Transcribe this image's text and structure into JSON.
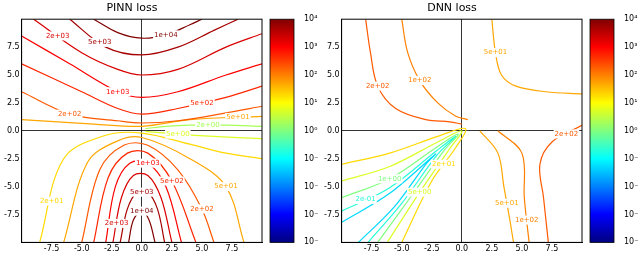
{
  "chart_data": [
    {
      "type": "contour",
      "title": "PINN loss",
      "xlim": [
        -10,
        10
      ],
      "ylim": [
        -10,
        10
      ],
      "xticks": [
        -7.5,
        {
          "value": -5,
          "label": "-5.0"
        },
        -2.5,
        {
          "value": 0,
          "label": "0.0"
        },
        2.5,
        {
          "value": 5,
          "label": "5.0"
        },
        7.5
      ],
      "yticks": [
        -7.5,
        {
          "value": -5,
          "label": "-5.0"
        },
        -2.5,
        {
          "value": 0,
          "label": "0.0"
        },
        2.5,
        {
          "value": 5,
          "label": "5.0"
        },
        7.5
      ],
      "colorbar": {
        "log": true,
        "range": [
          0.0001,
          10000
        ],
        "ticks": [
          {
            "value": 0.0001,
            "label": "10⁻⁴"
          },
          {
            "value": 0.001,
            "label": "10⁻³"
          },
          {
            "value": 0.01,
            "label": "10⁻²"
          },
          {
            "value": 0.1,
            "label": "10⁻¹"
          },
          {
            "value": 1,
            "label": "10⁰"
          },
          {
            "value": 10,
            "label": "10¹"
          },
          {
            "value": 100,
            "label": "10²"
          },
          {
            "value": 1000,
            "label": "10³"
          },
          {
            "value": 10000,
            "label": "10⁴"
          }
        ]
      },
      "contours": [
        {
          "level": 10000,
          "label": "1e+04",
          "label_at": [
            2,
            8.6
          ],
          "points": [
            [
              -4,
              10
            ],
            [
              -2,
              8.8
            ],
            [
              0,
              8.3
            ],
            [
              2,
              8.6
            ],
            [
              4,
              9.5
            ],
            [
              5,
              10
            ]
          ]
        },
        {
          "level": 5000,
          "label": "5e+03",
          "label_at": [
            -3.5,
            7.92
          ],
          "points": [
            [
              -6,
              10
            ],
            [
              -3,
              7.5
            ],
            [
              0,
              6.8
            ],
            [
              3,
              7.5
            ],
            [
              6,
              9
            ],
            [
              8,
              10
            ]
          ]
        },
        {
          "level": 2000,
          "label": "2e+03",
          "label_at": [
            -7,
            8.5
          ],
          "points": [
            [
              -9,
              10
            ],
            [
              -5,
              7
            ],
            [
              -2,
              5.5
            ],
            [
              0,
              5
            ],
            [
              3,
              5.5
            ],
            [
              7,
              7.5
            ],
            [
              10,
              8.7
            ]
          ]
        },
        {
          "level": 1000,
          "label": "1e+03",
          "label_at": [
            -2,
            3.5
          ],
          "points": [
            [
              -10,
              8.5
            ],
            [
              -6,
              6
            ],
            [
              -2,
              3.5
            ],
            [
              0,
              3
            ],
            [
              3,
              3.5
            ],
            [
              7,
              5
            ],
            [
              10,
              6
            ]
          ]
        },
        {
          "level": 500,
          "label": "5e+02",
          "label_at": [
            5,
            2.5
          ],
          "points": [
            [
              -10,
              6
            ],
            [
              -5,
              3.5
            ],
            [
              -2,
              2
            ],
            [
              0,
              1.5
            ],
            [
              3,
              2
            ],
            [
              7,
              3
            ],
            [
              10,
              4
            ]
          ]
        },
        {
          "level": 200,
          "label": "2e+02",
          "label_at": [
            -6,
            1.5
          ],
          "points": [
            [
              -10,
              3.5
            ],
            [
              -6,
              1.5
            ],
            [
              -2,
              0.9
            ],
            [
              0,
              0.7
            ],
            [
              3,
              0.9
            ],
            [
              7,
              1.6
            ],
            [
              10,
              2.2
            ]
          ]
        },
        {
          "level": 50,
          "label": "5e+01",
          "label_at": [
            8,
            1.2
          ],
          "points": [
            [
              -10,
              1
            ],
            [
              -4,
              0.6
            ],
            [
              0,
              0.4
            ],
            [
              4,
              1
            ],
            [
              10,
              1.3
            ]
          ]
        },
        {
          "level": 2,
          "label": "2e+00",
          "label_at": [
            5.5,
            0.5
          ],
          "points": [
            [
              0.3,
              0.2
            ],
            [
              2,
              0.4
            ],
            [
              4,
              0.5
            ],
            [
              7,
              0.5
            ],
            [
              10,
              0.4
            ]
          ]
        },
        {
          "level": 5,
          "label": "5e+00",
          "label_at": [
            3,
            -0.3
          ],
          "points": [
            [
              0.3,
              -0.05
            ],
            [
              3,
              -0.3
            ],
            [
              6,
              -0.5
            ],
            [
              10,
              -0.7
            ]
          ]
        },
        {
          "level": 20,
          "label": "2e+01",
          "label_at": [
            -7.5,
            -6.3
          ],
          "points": [
            [
              -8.5,
              -10
            ],
            [
              -6.5,
              -2.5
            ],
            [
              -3,
              -0.4
            ],
            [
              0,
              -0.2
            ],
            [
              4,
              -1.2
            ],
            [
              7,
              -2
            ],
            [
              10,
              -2.5
            ]
          ]
        },
        {
          "level": 50,
          "label": "5e+01",
          "label_at": [
            7,
            -5
          ],
          "points": [
            [
              -6.5,
              -10
            ],
            [
              -4.5,
              -2.8
            ],
            [
              -2,
              -0.9
            ],
            [
              0,
              -0.6
            ],
            [
              4,
              -2.5
            ],
            [
              7,
              -5
            ],
            [
              8.5,
              -10
            ]
          ]
        },
        {
          "level": 200,
          "label": "2e+02",
          "label_at": [
            5,
            -7
          ],
          "points": [
            [
              -5,
              -10
            ],
            [
              -3.5,
              -3.5
            ],
            [
              -1.5,
              -1.3
            ],
            [
              0.5,
              -1.3
            ],
            [
              3,
              -3.5
            ],
            [
              5,
              -7
            ],
            [
              6,
              -10
            ]
          ]
        },
        {
          "level": 500,
          "label": "5e+02",
          "label_at": [
            2.5,
            -4.5
          ],
          "points": [
            [
              -4,
              -10
            ],
            [
              -2.8,
              -4.2
            ],
            [
              -1.2,
              -2
            ],
            [
              0.5,
              -2
            ],
            [
              2.5,
              -4.5
            ],
            [
              4.5,
              -10
            ]
          ]
        },
        {
          "level": 1000,
          "label": "1e+03",
          "label_at": [
            0.5,
            -2.9
          ],
          "points": [
            [
              -3,
              -10
            ],
            [
              -2.2,
              -5
            ],
            [
              -1,
              -2.9
            ],
            [
              0.5,
              -2.9
            ],
            [
              2,
              -5
            ],
            [
              3.3,
              -10
            ]
          ]
        },
        {
          "level": 2000,
          "label": "2e+03",
          "label_at": [
            -2.1,
            -8.3
          ],
          "points": [
            [
              -2.4,
              -10
            ],
            [
              -1.7,
              -6
            ],
            [
              -0.7,
              -4
            ],
            [
              0.5,
              -4
            ],
            [
              1.6,
              -6
            ],
            [
              2.5,
              -10
            ]
          ]
        },
        {
          "level": 5000,
          "label": "5e+03",
          "label_at": [
            0,
            -5.5
          ],
          "points": [
            [
              -1.8,
              -10
            ],
            [
              -1.2,
              -7
            ],
            [
              -0.4,
              -5.5
            ],
            [
              0.5,
              -5.5
            ],
            [
              1.3,
              -7
            ],
            [
              1.9,
              -10
            ]
          ]
        },
        {
          "level": 10000,
          "label": "1e+04",
          "label_at": [
            0,
            -7.2
          ],
          "points": [
            [
              -1.1,
              -10
            ],
            [
              -0.7,
              -8
            ],
            [
              0,
              -7.2
            ],
            [
              0.6,
              -8
            ],
            [
              1.1,
              -10
            ]
          ]
        }
      ]
    },
    {
      "type": "contour",
      "title": "DNN loss",
      "xlim": [
        -10,
        10
      ],
      "ylim": [
        -10,
        10
      ],
      "xticks": [
        -7.5,
        {
          "value": -5,
          "label": "-5.0"
        },
        -2.5,
        {
          "value": 0,
          "label": "0.0"
        },
        2.5,
        {
          "value": 5,
          "label": "5.0"
        },
        7.5
      ],
      "yticks": [
        -7.5,
        {
          "value": -5,
          "label": "-5.0"
        },
        -2.5,
        {
          "value": 0,
          "label": "0.0"
        },
        2.5,
        {
          "value": 5,
          "label": "5.0"
        },
        7.5
      ],
      "colorbar": {
        "log": true,
        "range": [
          0.0001,
          10000
        ],
        "ticks": [
          {
            "value": 0.0001,
            "label": "10⁻⁴"
          },
          {
            "value": 0.001,
            "label": "10⁻³"
          },
          {
            "value": 0.01,
            "label": "10⁻²"
          },
          {
            "value": 0.1,
            "label": "10⁻¹"
          },
          {
            "value": 1,
            "label": "10⁰"
          },
          {
            "value": 10,
            "label": "10¹"
          },
          {
            "value": 100,
            "label": "10²"
          },
          {
            "value": 1000,
            "label": "10³"
          },
          {
            "value": 10000,
            "label": "10⁴"
          }
        ]
      },
      "contours": [
        {
          "level": 200,
          "label": "2e+02",
          "label_at": [
            -7,
            4
          ],
          "points": [
            [
              -8,
              10
            ],
            [
              -7.6,
              7
            ],
            [
              -7,
              4
            ],
            [
              -5.5,
              2
            ],
            [
              -3,
              1
            ],
            [
              -1,
              0.8
            ],
            [
              0,
              0.6
            ]
          ]
        },
        {
          "level": 100,
          "label": "1e+02",
          "label_at": [
            -3.5,
            4.5
          ],
          "points": [
            [
              -5,
              10
            ],
            [
              -4.5,
              7
            ],
            [
              -3.5,
              4.5
            ],
            [
              -2,
              2.5
            ],
            [
              -0.5,
              1.3
            ],
            [
              0.5,
              1
            ]
          ]
        },
        {
          "level": 50,
          "label": "5e+01",
          "label_at": [
            2.8,
            7
          ],
          "points": [
            [
              2.5,
              10
            ],
            [
              2.8,
              7
            ],
            [
              3.3,
              5
            ],
            [
              4.5,
              4
            ],
            [
              7,
              3.5
            ],
            [
              10,
              3.3
            ]
          ]
        },
        {
          "level": 50,
          "label": "5e+01",
          "label_at": [
            3.75,
            -6.5
          ],
          "points": [
            [
              1.5,
              0
            ],
            [
              3,
              -2
            ],
            [
              3.5,
              -5
            ],
            [
              4,
              -8
            ],
            [
              4.3,
              -10
            ]
          ]
        },
        {
          "level": 100,
          "label": "1e+02",
          "label_at": [
            5.4,
            -8
          ],
          "points": [
            [
              3,
              0
            ],
            [
              5,
              -2
            ],
            [
              5.2,
              -6
            ],
            [
              5.6,
              -10
            ]
          ]
        },
        {
          "level": 200,
          "label": "2e+02",
          "label_at": [
            8.7,
            -0.28
          ],
          "points": [
            [
              10,
              0.5
            ],
            [
              7.5,
              -1
            ],
            [
              6.5,
              -3
            ],
            [
              6.8,
              -6
            ],
            [
              7.2,
              -10
            ]
          ]
        },
        {
          "level": 20,
          "label": "2e+01",
          "label_at": [
            -1.5,
            -3
          ],
          "points": [
            [
              -10,
              -3
            ],
            [
              -6,
              -2
            ],
            [
              -2,
              -0.5
            ],
            [
              0.3,
              0.2
            ],
            [
              -0.5,
              -1.5
            ],
            [
              -2.5,
              -4.5
            ],
            [
              -5,
              -10
            ]
          ]
        },
        {
          "level": 5,
          "label": "5e+00",
          "label_at": [
            -3.5,
            -5.5
          ],
          "points": [
            [
              -10,
              -4.5
            ],
            [
              -6,
              -3.2
            ],
            [
              -2,
              -1
            ],
            [
              0,
              0
            ],
            [
              -1,
              -1.6
            ],
            [
              -3.5,
              -5.5
            ],
            [
              -6.2,
              -10
            ]
          ]
        },
        {
          "level": 1,
          "label": "1e+00",
          "label_at": [
            -6,
            -4.3
          ],
          "points": [
            [
              -10,
              -6
            ],
            [
              -6,
              -4.3
            ],
            [
              -2,
              -1.4
            ],
            [
              -0.3,
              -0.3
            ],
            [
              -1.5,
              -1.8
            ],
            [
              -4.3,
              -6
            ],
            [
              -7,
              -10
            ]
          ]
        },
        {
          "level": 0.2,
          "label": "2e-01",
          "label_at": [
            -8,
            -6.15
          ],
          "points": [
            [
              -10,
              -7.2
            ],
            [
              -6,
              -5.1
            ],
            [
              -2,
              -1.7
            ],
            [
              -0.5,
              -0.5
            ],
            [
              -2,
              -2.1
            ],
            [
              -5,
              -6.5
            ],
            [
              -7.8,
              -10
            ]
          ]
        },
        {
          "level": 0.05,
          "points": [
            [
              -10,
              -8.2
            ],
            [
              -6,
              -5.6
            ],
            [
              -2.2,
              -2.1
            ],
            [
              -3,
              -3
            ],
            [
              -5.6,
              -6.8
            ],
            [
              -8.6,
              -10
            ]
          ]
        }
      ]
    }
  ]
}
